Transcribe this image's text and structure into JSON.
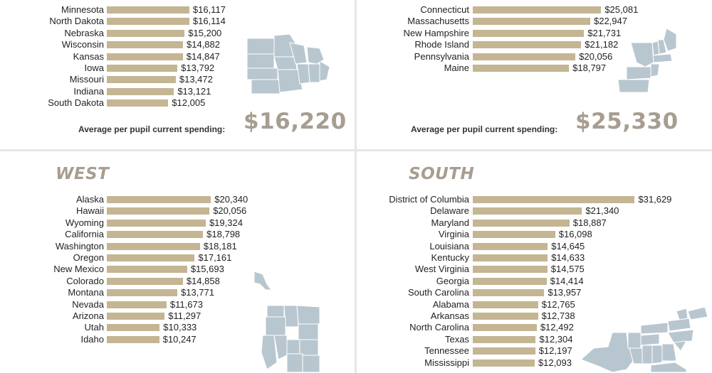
{
  "colors": {
    "bar": "#c4b593",
    "map": "#b8c6cf",
    "title": "#a79d90",
    "divider": "#e6e6e6"
  },
  "chart_data": [
    {
      "type": "bar",
      "region": "midwest",
      "title": "",
      "average_label": "Average per pupil current spending:",
      "average_value": "$16,220",
      "categories": [
        "Minnesota",
        "North Dakota",
        "Nebraska",
        "Wisconsin",
        "Kansas",
        "Iowa",
        "Missouri",
        "Indiana",
        "South Dakota"
      ],
      "values": [
        16117,
        16114,
        15200,
        14882,
        14847,
        13792,
        13472,
        13121,
        12005
      ],
      "labels": [
        "$16,117",
        "$16,114",
        "$15,200",
        "$14,882",
        "$14,847",
        "$13,792",
        "$13,472",
        "$13,121",
        "$12,005"
      ]
    },
    {
      "type": "bar",
      "region": "northeast",
      "title": "",
      "average_label": "Average per pupil current spending:",
      "average_value": "$25,330",
      "categories": [
        "Connecticut",
        "Massachusetts",
        "New Hampshire",
        "Rhode Island",
        "Pennsylvania",
        "Maine"
      ],
      "values": [
        25081,
        22947,
        21731,
        21182,
        20056,
        18797
      ],
      "labels": [
        "$25,081",
        "$22,947",
        "$21,731",
        "$21,182",
        "$20,056",
        "$18,797"
      ]
    },
    {
      "type": "bar",
      "region": "west",
      "title": "WEST",
      "categories": [
        "Alaska",
        "Hawaii",
        "Wyoming",
        "California",
        "Washington",
        "Oregon",
        "New Mexico",
        "Colorado",
        "Montana",
        "Nevada",
        "Arizona",
        "Utah",
        "Idaho"
      ],
      "values": [
        20340,
        20056,
        19324,
        18798,
        18181,
        17161,
        15693,
        14858,
        13771,
        11673,
        11297,
        10333,
        10247
      ],
      "labels": [
        "$20,340",
        "$20,056",
        "$19,324",
        "$18,798",
        "$18,181",
        "$17,161",
        "$15,693",
        "$14,858",
        "$13,771",
        "$11,673",
        "$11,297",
        "$10,333",
        "$10,247"
      ]
    },
    {
      "type": "bar",
      "region": "south",
      "title": "SOUTH",
      "categories": [
        "District of Columbia",
        "Delaware",
        "Maryland",
        "Virginia",
        "Louisiana",
        "Kentucky",
        "West Virginia",
        "Georgia",
        "South Carolina",
        "Alabama",
        "Arkansas",
        "North Carolina",
        "Texas",
        "Tennessee",
        "Mississippi"
      ],
      "values": [
        31629,
        21340,
        18887,
        16098,
        14645,
        14633,
        14575,
        14414,
        13957,
        12765,
        12738,
        12492,
        12304,
        12197,
        12093
      ],
      "labels": [
        "$31,629",
        "$21,340",
        "$18,887",
        "$16,098",
        "$14,645",
        "$14,633",
        "$14,575",
        "$14,414",
        "$13,957",
        "$12,765",
        "$12,738",
        "$12,492",
        "$12,304",
        "$12,197",
        "$12,093"
      ]
    }
  ]
}
